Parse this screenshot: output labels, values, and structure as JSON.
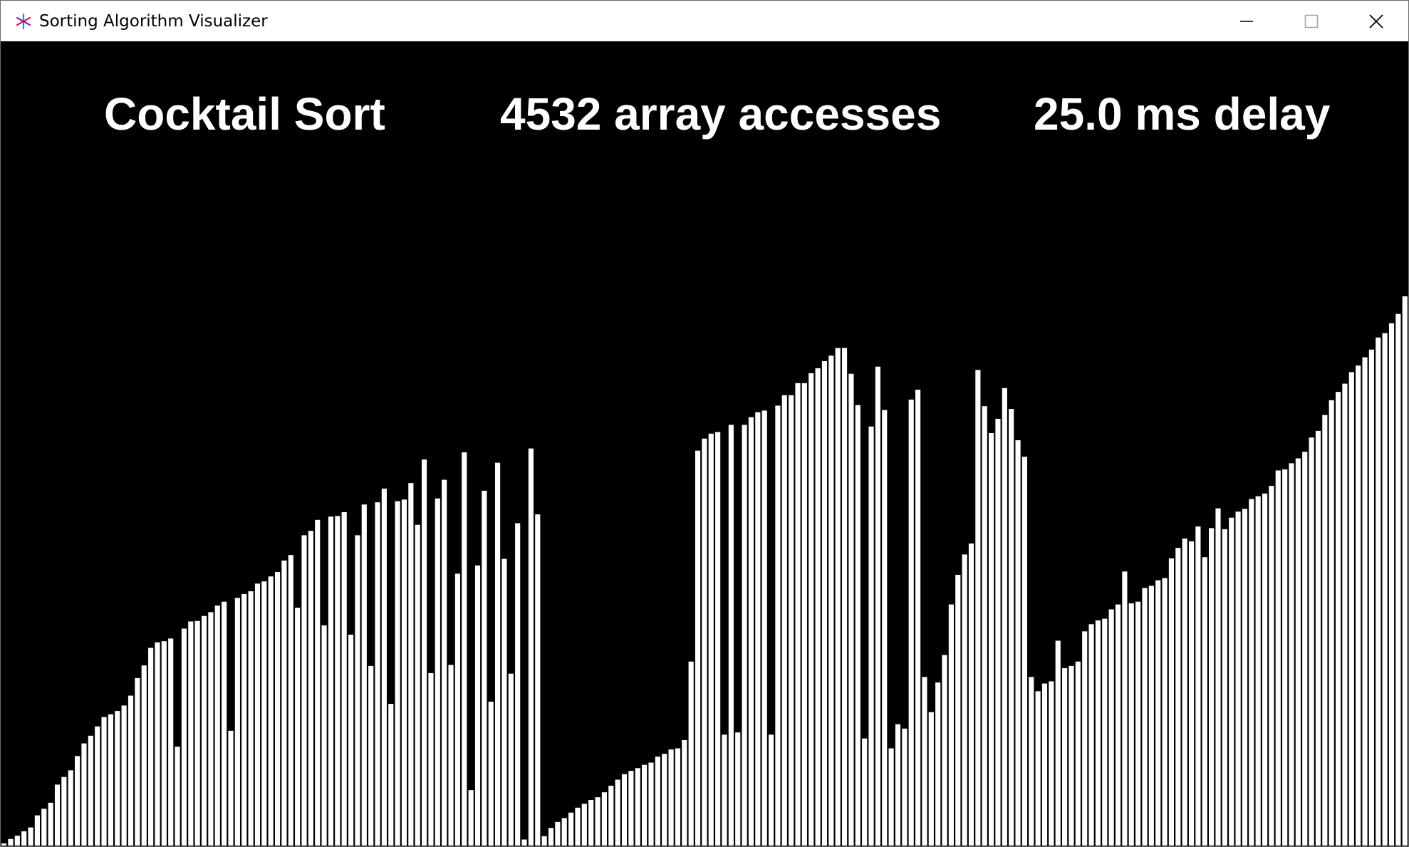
{
  "window": {
    "title": "Sorting Algorithm Visualizer",
    "icon": "app-star-icon",
    "controls": [
      "minimize-icon",
      "maximize-icon",
      "close-icon"
    ]
  },
  "hud": {
    "algorithm": "Cocktail Sort",
    "accesses": "4532 array accesses",
    "delay": "25.0 ms delay"
  },
  "colors": {
    "background": "#000000",
    "bar_fill": "#ffffff",
    "bar_outline": "#000000"
  },
  "bars": [
    0.002,
    0.012,
    0.018,
    0.026,
    0.033,
    0.055,
    0.067,
    0.078,
    0.111,
    0.125,
    0.137,
    0.163,
    0.186,
    0.2,
    0.217,
    0.234,
    0.239,
    0.245,
    0.255,
    0.273,
    0.305,
    0.328,
    0.36,
    0.37,
    0.372,
    0.377,
    0.18,
    0.395,
    0.408,
    0.409,
    0.418,
    0.425,
    0.437,
    0.444,
    0.209,
    0.451,
    0.458,
    0.463,
    0.477,
    0.481,
    0.49,
    0.498,
    0.519,
    0.529,
    0.433,
    0.565,
    0.573,
    0.593,
    0.401,
    0.599,
    0.6,
    0.607,
    0.384,
    0.565,
    0.621,
    0.327,
    0.625,
    0.65,
    0.258,
    0.627,
    0.63,
    0.66,
    0.584,
    0.703,
    0.314,
    0.632,
    0.666,
    0.329,
    0.495,
    0.716,
    0.101,
    0.51,
    0.646,
    0.262,
    0.697,
    0.522,
    0.313,
    0.587,
    0.011,
    0.723,
    0.603,
    0.017,
    0.032,
    0.043,
    0.05,
    0.06,
    0.069,
    0.076,
    0.083,
    0.088,
    0.097,
    0.109,
    0.12,
    0.13,
    0.136,
    0.141,
    0.147,
    0.151,
    0.162,
    0.167,
    0.175,
    0.177,
    0.192,
    0.335,
    0.719,
    0.741,
    0.75,
    0.753,
    0.202,
    0.766,
    0.206,
    0.766,
    0.78,
    0.789,
    0.792,
    0.202,
    0.801,
    0.82,
    0.82,
    0.842,
    0.842,
    0.86,
    0.869,
    0.882,
    0.892,
    0.906,
    0.906,
    0.859,
    0.802,
    0.195,
    0.763,
    0.872,
    0.793,
    0.177,
    0.221,
    0.213,
    0.812,
    0.83,
    0.307,
    0.243,
    0.297,
    0.347,
    0.439,
    0.493,
    0.53,
    0.55,
    0.866,
    0.8,
    0.751,
    0.777,
    0.833,
    0.795,
    0.738,
    0.708,
    0.307,
    0.281,
    0.295,
    0.299,
    0.373,
    0.323,
    0.327,
    0.335,
    0.39,
    0.403,
    0.41,
    0.413,
    0.43,
    0.439,
    0.499,
    0.441,
    0.444,
    0.469,
    0.473,
    0.483,
    0.487,
    0.523,
    0.542,
    0.559,
    0.554,
    0.581,
    0.525,
    0.578,
    0.614,
    0.576,
    0.597,
    0.608,
    0.613,
    0.631,
    0.636,
    0.641,
    0.655,
    0.683,
    0.685,
    0.696,
    0.705,
    0.717,
    0.743,
    0.755,
    0.784,
    0.811,
    0.826,
    0.841,
    0.862,
    0.874,
    0.889,
    0.903,
    0.925,
    0.933,
    0.951,
    0.968,
    1.0
  ]
}
